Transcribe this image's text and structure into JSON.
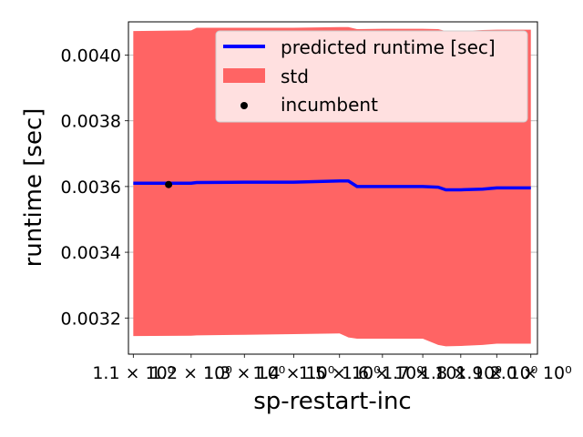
{
  "chart_data": {
    "type": "line",
    "title": "",
    "xlabel": "sp-restart-inc",
    "ylabel": "runtime [sec]",
    "xscale": "log",
    "xlim": [
      1.092,
      2.02
    ],
    "ylim": [
      0.00309,
      0.004101
    ],
    "xticks": [
      1.1,
      1.2,
      1.3,
      1.4,
      1.5,
      1.6,
      1.7,
      1.8,
      1.9,
      2.0
    ],
    "xtick_labels": [
      "1.1 × 10⁰",
      "1.2 × 10⁰",
      "1.3 × 10⁰",
      "1.4 × 10⁰",
      "1.5 × 10⁰",
      "1.6 × 10⁰",
      "1.7 × 10⁰",
      "1.8 × 10⁰",
      "1.9 × 10⁰",
      "2.0 × 10⁰"
    ],
    "yticks": [
      0.0032,
      0.0034,
      0.0036,
      0.0038,
      0.004
    ],
    "ytick_labels": [
      "0.0032",
      "0.0034",
      "0.0036",
      "0.0038",
      "0.0040"
    ],
    "grid": "horizontal",
    "legend_position": "top-right",
    "series": [
      {
        "name": "predicted runtime [sec]",
        "kind": "line",
        "color": "#0000ff",
        "x": [
          1.1,
          1.2,
          1.21,
          1.3,
          1.35,
          1.4,
          1.5,
          1.52,
          1.54,
          1.6,
          1.7,
          1.74,
          1.76,
          1.8,
          1.86,
          1.9,
          2.0
        ],
        "y": [
          0.00361,
          0.00361,
          0.003612,
          0.003613,
          0.003613,
          0.003613,
          0.003617,
          0.003617,
          0.0036,
          0.0036,
          0.0036,
          0.003598,
          0.00359,
          0.00359,
          0.003592,
          0.003596,
          0.003596
        ]
      },
      {
        "name": "std",
        "kind": "band",
        "color": "#ff6464",
        "x": [
          1.1,
          1.2,
          1.21,
          1.3,
          1.4,
          1.5,
          1.52,
          1.54,
          1.6,
          1.7,
          1.74,
          1.76,
          1.8,
          1.86,
          1.9,
          2.0
        ],
        "upper": [
          0.004073,
          0.004075,
          0.004083,
          0.004083,
          0.004083,
          0.004085,
          0.004085,
          0.004079,
          0.00408,
          0.00408,
          0.004079,
          0.004073,
          0.004073,
          0.004076,
          0.004077,
          0.004077
        ],
        "lower": [
          0.003145,
          0.003146,
          0.003147,
          0.003149,
          0.003151,
          0.003153,
          0.003141,
          0.003137,
          0.003137,
          0.003137,
          0.003118,
          0.003114,
          0.003115,
          0.003118,
          0.003122,
          0.003122
        ]
      },
      {
        "name": "incumbent",
        "kind": "scatter",
        "color": "#000000",
        "x": [
          1.16
        ],
        "y": [
          0.003606
        ]
      }
    ]
  }
}
